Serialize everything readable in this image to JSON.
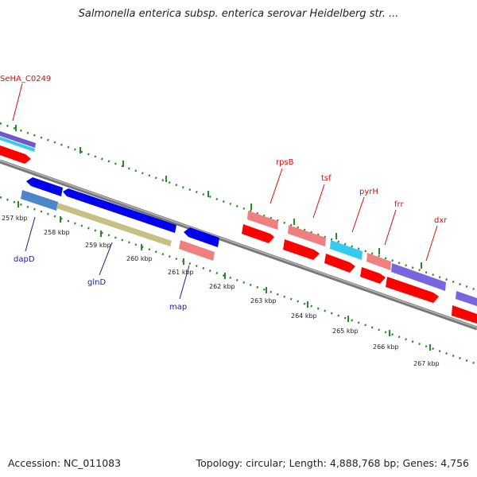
{
  "title": "Salmonella enterica subsp. enterica serovar Heidelberg str. ...",
  "footer": {
    "accession": "Accession: NC_011083",
    "summary": "Topology: circular; Length: 4,888,768 bp; Genes: 4,756"
  },
  "colors": {
    "backbone": "#8a8a8a",
    "tick": "#2a8a2a",
    "label_red": "#cc1111",
    "label_blue": "#1a1aa0",
    "cds_red": "#ff0000",
    "cds_blue": "#0000ee",
    "cds_pink": "#f08080",
    "cds_cyan": "#33ccee",
    "cds_steel": "#4a86c8",
    "cds_khaki": "#c8c080",
    "cds_lavender": "#7766dd"
  },
  "ticks": [
    {
      "label": "257 kbp"
    },
    {
      "label": "258 kbp"
    },
    {
      "label": "259 kbp"
    },
    {
      "label": "260 kbp"
    },
    {
      "label": "261 kbp"
    },
    {
      "label": "262 kbp"
    },
    {
      "label": "263 kbp"
    },
    {
      "label": "264 kbp"
    },
    {
      "label": "265 kbp"
    },
    {
      "label": "266 kbp"
    },
    {
      "label": "267 kbp"
    }
  ],
  "genes_forward": [
    {
      "name": "SeHA_C0249"
    },
    {
      "name": "rpsB"
    },
    {
      "name": "tsf"
    },
    {
      "name": "pyrH"
    },
    {
      "name": "frr"
    },
    {
      "name": "dxr"
    }
  ],
  "genes_reverse": [
    {
      "name": "dapD"
    },
    {
      "name": "glnD"
    },
    {
      "name": "map"
    }
  ]
}
